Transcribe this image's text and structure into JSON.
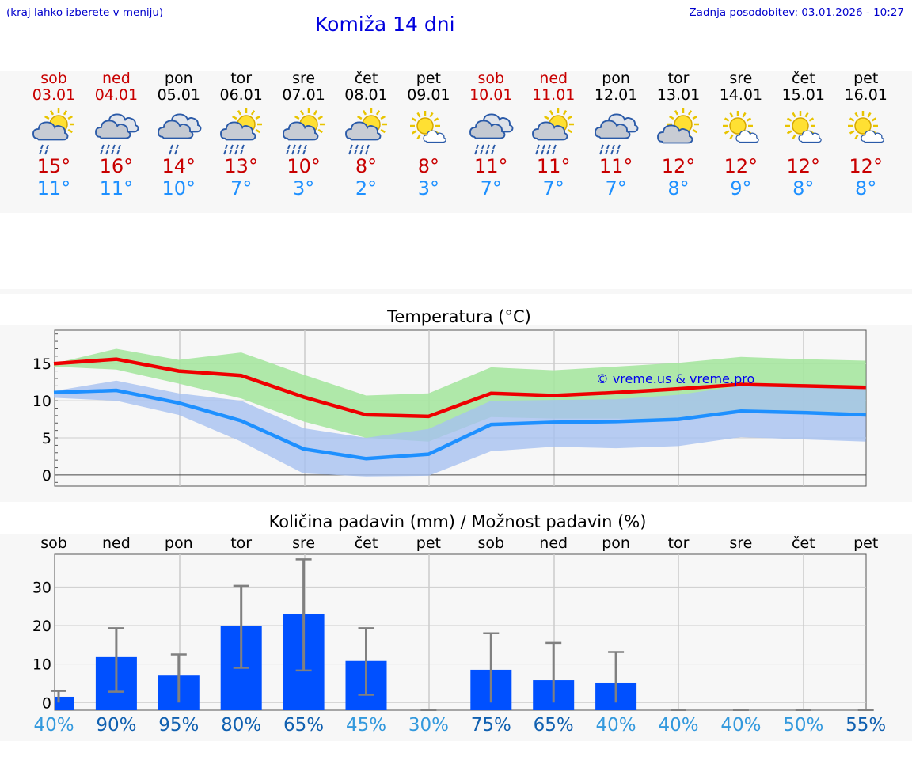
{
  "header": {
    "note": "(kraj lahko izberete v meniju)",
    "title": "Komiža 14 dni",
    "updated": "Zadnja posodobitev: 03.01.2026 - 10:27"
  },
  "days": [
    {
      "name": "sob",
      "date": "03.01",
      "weekend": true,
      "icon": "sun-cloud-rain-icon",
      "tmax": "15°",
      "tmin": "11°"
    },
    {
      "name": "ned",
      "date": "04.01",
      "weekend": true,
      "icon": "cloud-heavy-rain-icon",
      "tmax": "16°",
      "tmin": "11°"
    },
    {
      "name": "pon",
      "date": "05.01",
      "weekend": false,
      "icon": "cloud-rain-icon",
      "tmax": "14°",
      "tmin": "10°"
    },
    {
      "name": "tor",
      "date": "06.01",
      "weekend": false,
      "icon": "sun-cloud-heavy-rain-icon",
      "tmax": "13°",
      "tmin": "7°"
    },
    {
      "name": "sre",
      "date": "07.01",
      "weekend": false,
      "icon": "sun-cloud-heavy-rain-icon",
      "tmax": "10°",
      "tmin": "3°"
    },
    {
      "name": "čet",
      "date": "08.01",
      "weekend": false,
      "icon": "sun-cloud-heavy-rain-icon",
      "tmax": "8°",
      "tmin": "2°"
    },
    {
      "name": "pet",
      "date": "09.01",
      "weekend": false,
      "icon": "sun-small-cloud-icon",
      "tmax": "8°",
      "tmin": "3°"
    },
    {
      "name": "sob",
      "date": "10.01",
      "weekend": true,
      "icon": "cloud-heavy-rain-icon",
      "tmax": "11°",
      "tmin": "7°"
    },
    {
      "name": "ned",
      "date": "11.01",
      "weekend": true,
      "icon": "sun-cloud-heavy-rain-icon",
      "tmax": "11°",
      "tmin": "7°"
    },
    {
      "name": "pon",
      "date": "12.01",
      "weekend": false,
      "icon": "cloud-heavy-rain-icon",
      "tmax": "11°",
      "tmin": "7°"
    },
    {
      "name": "tor",
      "date": "13.01",
      "weekend": false,
      "icon": "sun-cloud-icon",
      "tmax": "12°",
      "tmin": "8°"
    },
    {
      "name": "sre",
      "date": "14.01",
      "weekend": false,
      "icon": "sun-small-cloud-icon",
      "tmax": "12°",
      "tmin": "9°"
    },
    {
      "name": "čet",
      "date": "15.01",
      "weekend": false,
      "icon": "sun-small-cloud-icon",
      "tmax": "12°",
      "tmin": "8°"
    },
    {
      "name": "pet",
      "date": "16.01",
      "weekend": false,
      "icon": "sun-small-cloud-icon",
      "tmax": "12°",
      "tmin": "8°"
    }
  ],
  "colors": {
    "max_line": "#ee0000",
    "min_line": "#1e90ff",
    "max_band": "#a6e6a0",
    "min_band": "#a6c0f0",
    "bar": "#0050ff",
    "errbar": "#808080",
    "prob_high": "#1060b0",
    "prob_low": "#3399dd",
    "weekend": "#c80000"
  },
  "chart_data": [
    {
      "type": "line",
      "title": "Temperatura (°C)",
      "watermark": "© vreme.us & vreme.pro",
      "ylim": [
        -1.5,
        19.5
      ],
      "yticks": [
        0,
        5,
        10,
        15
      ],
      "xlim": [
        0,
        13.7
      ],
      "series": [
        {
          "name": "max",
          "values": [
            15.0,
            15.6,
            14.0,
            13.4,
            10.5,
            8.1,
            7.9,
            11.0,
            10.7,
            11.1,
            11.6,
            12.2,
            12.0,
            11.8
          ],
          "band_high": [
            15.0,
            17.0,
            15.5,
            16.5,
            13.5,
            10.7,
            11.0,
            14.5,
            14.1,
            14.6,
            15.1,
            15.9,
            15.6,
            15.4
          ],
          "band_low": [
            14.6,
            14.2,
            12.3,
            10.3,
            7.2,
            5.0,
            4.5,
            7.8,
            7.6,
            7.6,
            7.5,
            8.6,
            8.5,
            8.3
          ]
        },
        {
          "name": "min",
          "values": [
            11.1,
            11.4,
            9.7,
            7.3,
            3.5,
            2.2,
            2.8,
            6.8,
            7.1,
            7.2,
            7.5,
            8.6,
            8.4,
            8.1
          ],
          "band_high": [
            11.3,
            12.7,
            11.0,
            10.0,
            6.3,
            5.0,
            6.2,
            10.0,
            10.1,
            10.2,
            10.8,
            12.0,
            11.8,
            11.6
          ],
          "band_low": [
            10.4,
            10.0,
            8.1,
            4.5,
            0.2,
            -0.2,
            -0.1,
            3.2,
            3.8,
            3.6,
            3.9,
            5.1,
            4.8,
            4.5
          ]
        }
      ]
    },
    {
      "type": "bar",
      "title": "Količina padavin (mm) / Možnost padavin (%)",
      "ylim": [
        -2,
        38.5
      ],
      "yticks": [
        0,
        10,
        20,
        30
      ],
      "xlim": [
        0,
        13.7
      ],
      "categories": [
        "sob",
        "ned",
        "pon",
        "tor",
        "sre",
        "čet",
        "pet",
        "sob",
        "ned",
        "pon",
        "tor",
        "sre",
        "čet",
        "pet"
      ],
      "values": [
        1.5,
        11.8,
        7.0,
        19.8,
        23.0,
        10.8,
        0,
        8.5,
        5.8,
        5.2,
        0,
        0,
        0,
        0
      ],
      "err_high": [
        3.0,
        19.3,
        12.5,
        30.3,
        37.2,
        19.3,
        0,
        18.0,
        15.5,
        13.1,
        0,
        0,
        0,
        0
      ],
      "err_low": [
        0,
        2.8,
        0,
        9.0,
        8.3,
        2.0,
        0,
        0,
        0,
        0,
        0,
        0,
        0,
        0
      ],
      "probability": [
        "40%",
        "90%",
        "95%",
        "80%",
        "65%",
        "45%",
        "30%",
        "75%",
        "65%",
        "40%",
        "40%",
        "40%",
        "50%",
        "55%"
      ]
    }
  ]
}
